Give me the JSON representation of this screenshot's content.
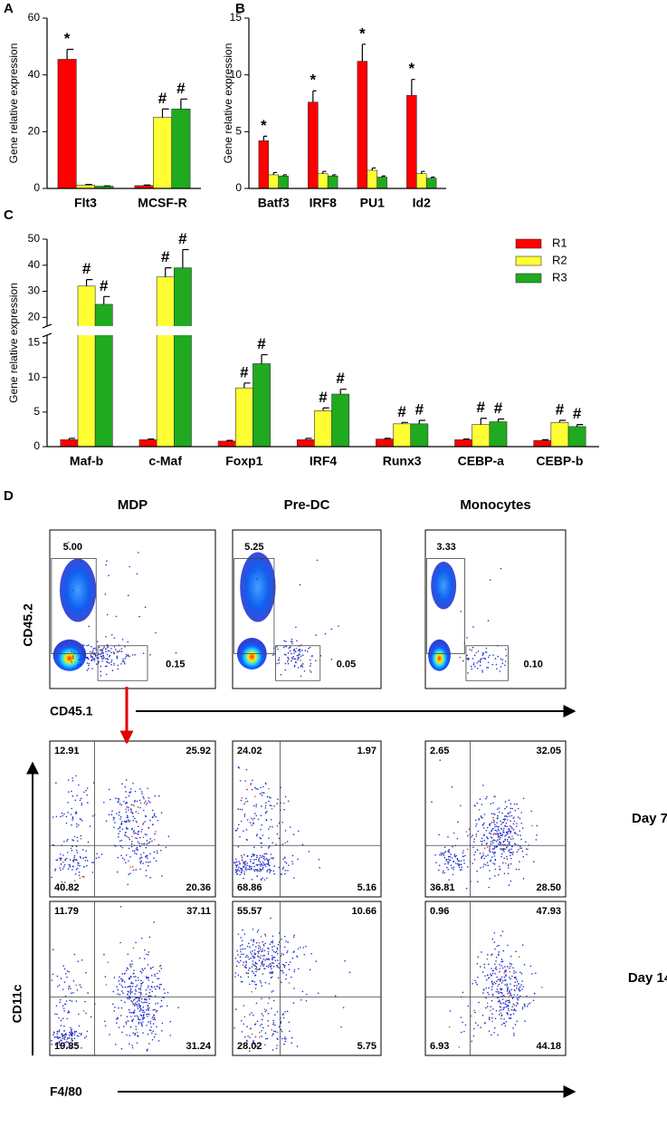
{
  "chart_data": [
    {
      "type": "bar",
      "panel_label": "A",
      "ylabel": "Gene relative expression",
      "categories": [
        "Flt3",
        "MCSF-R"
      ],
      "ylim": [
        0,
        60
      ],
      "yticks": [
        0,
        20,
        40,
        60
      ],
      "series": [
        {
          "color": "#ff0000",
          "values": [
            45.5,
            1
          ],
          "errors": [
            3.5,
            0.2
          ],
          "annotations": [
            "*",
            null
          ]
        },
        {
          "color": "#ffff33",
          "values": [
            1.2,
            25
          ],
          "errors": [
            0.2,
            3
          ],
          "annotations": [
            null,
            "#"
          ]
        },
        {
          "color": "#1faa1f",
          "values": [
            0.8,
            28
          ],
          "errors": [
            0.1,
            3.5
          ],
          "annotations": [
            null,
            "#"
          ]
        }
      ]
    },
    {
      "type": "bar",
      "panel_label": "B",
      "ylabel": "Gene relative expression",
      "categories": [
        "Batf3",
        "IRF8",
        "PU1",
        "Id2"
      ],
      "ylim": [
        0,
        15
      ],
      "yticks": [
        0,
        5,
        10,
        15
      ],
      "series": [
        {
          "color": "#ff0000",
          "values": [
            4.2,
            7.6,
            11.2,
            8.2
          ],
          "errors": [
            0.4,
            1,
            1.5,
            1.4
          ],
          "annotations": [
            "*",
            "*",
            "*",
            "*"
          ]
        },
        {
          "color": "#ffff33",
          "values": [
            1.2,
            1.3,
            1.6,
            1.3
          ],
          "errors": [
            0.2,
            0.2,
            0.2,
            0.2
          ],
          "annotations": [
            null,
            null,
            null,
            null
          ]
        },
        {
          "color": "#1faa1f",
          "values": [
            1.1,
            1.1,
            1,
            0.9
          ],
          "errors": [
            0.1,
            0.1,
            0.1,
            0.1
          ],
          "annotations": [
            null,
            null,
            null,
            null
          ]
        }
      ]
    },
    {
      "type": "bar",
      "panel_label": "C",
      "ylabel": "Gene relative expression",
      "categories": [
        "Maf-b",
        "c-Maf",
        "Foxp1",
        "IRF4",
        "Runx3",
        "CEBP-a",
        "CEBP-b"
      ],
      "ylim": [
        0,
        50
      ],
      "ybreak": [
        16,
        17
      ],
      "yticks": [
        0,
        5,
        10,
        15,
        20,
        30,
        40,
        50
      ],
      "legend": true,
      "legend_position": "top-right",
      "series": [
        {
          "name": "R1",
          "color": "#ff0000",
          "values": [
            1,
            1,
            0.8,
            1,
            1.1,
            1,
            0.9
          ],
          "errors": [
            0.2,
            0.1,
            0.1,
            0.2,
            0.1,
            0.1,
            0.1
          ],
          "annotations": [
            null,
            null,
            null,
            null,
            null,
            null,
            null
          ]
        },
        {
          "name": "R2",
          "color": "#ffff33",
          "values": [
            32,
            35.5,
            8.5,
            5.2,
            3.3,
            3.2,
            3.5
          ],
          "errors": [
            2.5,
            3.5,
            0.7,
            0.4,
            0.2,
            0.9,
            0.3
          ],
          "annotations": [
            "#",
            "#",
            "#",
            "#",
            "#",
            "#",
            "#"
          ]
        },
        {
          "name": "R3",
          "color": "#1faa1f",
          "values": [
            25,
            39,
            12,
            7.6,
            3.3,
            3.6,
            2.9
          ],
          "errors": [
            3,
            7,
            1.3,
            0.7,
            0.5,
            0.4,
            0.3
          ],
          "annotations": [
            "#",
            "#",
            "#",
            "#",
            "#",
            "#",
            "#"
          ]
        }
      ]
    }
  ],
  "flow_panel": {
    "panel_label": "D",
    "columns": [
      "MDP",
      "Pre-DC",
      "Monocytes"
    ],
    "gating": {
      "x_label": "CD45.1",
      "y_label": "CD45.2",
      "gates": [
        [
          "5.00",
          "0.15"
        ],
        [
          "5.25",
          "0.05"
        ],
        [
          "3.33",
          "0.10"
        ]
      ]
    },
    "culture": {
      "x_label": "F4/80",
      "y_label": "CD11c",
      "rows": [
        {
          "label": "Day 7",
          "quadrants": [
            [
              "12.91",
              "25.92",
              "40.82",
              "20.36"
            ],
            [
              "24.02",
              "1.97",
              "68.86",
              "5.16"
            ],
            [
              "2.65",
              "32.05",
              "36.81",
              "28.50"
            ]
          ]
        },
        {
          "label": "Day 14",
          "quadrants": [
            [
              "11.79",
              "37.11",
              "19.85",
              "31.24"
            ],
            [
              "55.57",
              "10.66",
              "28.02",
              "5.75"
            ],
            [
              "0.96",
              "47.93",
              "6.93",
              "44.18"
            ]
          ]
        }
      ]
    }
  }
}
